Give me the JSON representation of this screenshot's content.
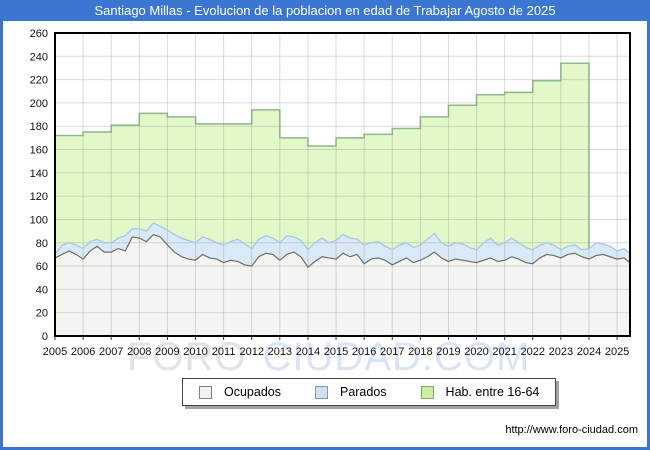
{
  "title": "Santiago Millas - Evolucion de la poblacion en edad de Trabajar Agosto de 2025",
  "watermark": {
    "part1": "FORO",
    "part2": "CIUDAD.COM"
  },
  "footer": {
    "url": "http://www.foro-ciudad.com"
  },
  "colors": {
    "frame_blue": "#3a76d2",
    "grid": "rgba(150,150,150,0.35)",
    "plot_border": "#000000",
    "axis_tick": "#333333"
  },
  "chart_data": {
    "type": "area",
    "title": "Santiago Millas - Evolucion de la poblacion en edad de Trabajar Agosto de 2025",
    "x_axis": {
      "min": 2005,
      "max": 2025.46,
      "ticks": [
        2005,
        2006,
        2007,
        2008,
        2009,
        2010,
        2011,
        2012,
        2013,
        2014,
        2015,
        2016,
        2017,
        2018,
        2019,
        2020,
        2021,
        2022,
        2023,
        2024,
        2025
      ]
    },
    "y_axis": {
      "min": 0,
      "max": 260,
      "step": 20
    },
    "legend": [
      {
        "label": "Ocupados",
        "fill": "#f2f2ef",
        "border": "#808080"
      },
      {
        "label": "Parados",
        "fill": "#cfe2f4",
        "border": "#8097ad"
      },
      {
        "label": "Hab. entre 16-64",
        "fill": "#cdee9d",
        "border": "#85a968"
      }
    ],
    "series": [
      {
        "name": "Ocupados",
        "fill": "#f4f4f1",
        "line": "#6e6e6e",
        "x_start": 2005,
        "x_step": 0.25,
        "values": [
          67,
          70,
          73,
          70,
          66,
          73,
          77,
          72,
          72,
          75,
          73,
          85,
          84,
          81,
          87,
          85,
          78,
          72,
          68,
          66,
          65,
          70,
          67,
          66,
          63,
          65,
          64,
          61,
          60,
          68,
          71,
          70,
          65,
          70,
          72,
          68,
          59,
          64,
          68,
          67,
          66,
          71,
          68,
          70,
          62,
          66,
          67,
          65,
          61,
          64,
          67,
          63,
          65,
          68,
          72,
          67,
          64,
          66,
          65,
          64,
          63,
          65,
          67,
          64,
          65,
          68,
          66,
          63,
          62,
          67,
          70,
          69,
          67,
          70,
          71,
          68,
          66,
          69,
          70,
          68,
          66,
          67,
          62
        ]
      },
      {
        "name": "Parados",
        "stacked_on": "Ocupados",
        "fill": "#d9e9f8",
        "line": "#a6c8e8",
        "x_start": 2005,
        "x_step": 0.25,
        "values": [
          3,
          8,
          7,
          8,
          9,
          8,
          6,
          8,
          8,
          9,
          13,
          7,
          8,
          9,
          10,
          9,
          13,
          15,
          16,
          16,
          15,
          15,
          16,
          14,
          15,
          16,
          19,
          18,
          15,
          15,
          15,
          14,
          15,
          16,
          13,
          14,
          15,
          16,
          16,
          13,
          16,
          16,
          16,
          13,
          16,
          14,
          14,
          12,
          13,
          14,
          13,
          13,
          13,
          15,
          16,
          13,
          13,
          14,
          14,
          12,
          11,
          15,
          17,
          14,
          15,
          16,
          14,
          13,
          12,
          11,
          10,
          9,
          7,
          7,
          7,
          6,
          9,
          11,
          9,
          9,
          7,
          8,
          8
        ]
      },
      {
        "name": "Hab. entre 16-64",
        "style": "annual-steps",
        "fill": "#e2f8c8",
        "line": "#8db98d",
        "years": [
          2005,
          2006,
          2007,
          2008,
          2009,
          2010,
          2011,
          2012,
          2013,
          2014,
          2015,
          2016,
          2017,
          2018,
          2019,
          2020,
          2021,
          2022,
          2023
        ],
        "values": [
          172,
          175,
          181,
          191,
          188,
          182,
          182,
          194,
          170,
          163,
          170,
          173,
          178,
          188,
          198,
          207,
          209,
          219,
          234
        ],
        "ends_at": 2024
      }
    ]
  }
}
